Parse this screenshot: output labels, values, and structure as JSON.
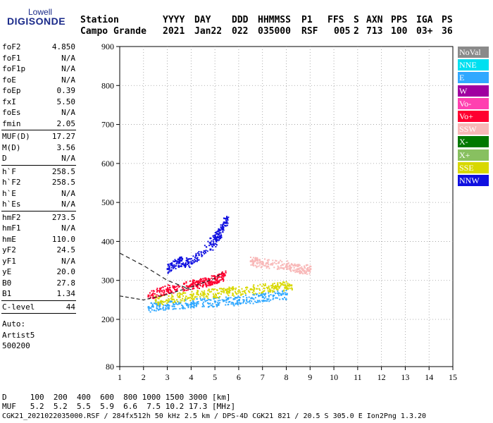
{
  "logo": {
    "line1": "Lowell",
    "line2": "DIGISONDE"
  },
  "header": {
    "labels": [
      "Station",
      "YYYY",
      "DAY",
      "DDD",
      "HHMMSS",
      "P1",
      "FFS",
      "S",
      "AXN",
      "PPS",
      "IGA",
      "PS"
    ],
    "values": [
      "Campo Grande",
      "2021",
      "Jan22",
      "022",
      "035000",
      "RSF",
      "005",
      "2",
      "713",
      "100",
      "03+",
      "36"
    ]
  },
  "params": {
    "group1": [
      {
        "k": "foF2",
        "v": "4.850"
      },
      {
        "k": "foF1",
        "v": "N/A"
      },
      {
        "k": "foF1p",
        "v": "N/A"
      },
      {
        "k": "foE",
        "v": "N/A"
      },
      {
        "k": "foEp",
        "v": "0.39"
      },
      {
        "k": "fxI",
        "v": "5.50"
      },
      {
        "k": "foEs",
        "v": "N/A"
      },
      {
        "k": "fmin",
        "v": "2.05"
      }
    ],
    "group2": [
      {
        "k": "MUF(D)",
        "v": "17.27"
      },
      {
        "k": "M(D)",
        "v": "3.56"
      },
      {
        "k": "D",
        "v": "N/A"
      }
    ],
    "group3": [
      {
        "k": "h`F",
        "v": "258.5"
      },
      {
        "k": "h`F2",
        "v": "258.5"
      },
      {
        "k": "h`E",
        "v": "N/A"
      },
      {
        "k": "h`Es",
        "v": "N/A"
      }
    ],
    "group4": [
      {
        "k": "hmF2",
        "v": "273.5"
      },
      {
        "k": "hmF1",
        "v": "N/A"
      },
      {
        "k": "hmE",
        "v": "110.0"
      },
      {
        "k": "yF2",
        "v": "24.5"
      },
      {
        "k": "yF1",
        "v": "N/A"
      },
      {
        "k": "yE",
        "v": "20.0"
      },
      {
        "k": "B0",
        "v": "27.8"
      },
      {
        "k": "B1",
        "v": "1.34"
      }
    ],
    "group5": [
      {
        "k": "C-level",
        "v": "44"
      }
    ],
    "auto": [
      "Auto:",
      "Artist5",
      "500200"
    ]
  },
  "footer": {
    "d_line": "D     100  200  400  600  800 1000 1500 3000 [km]",
    "muf_line": "MUF   5.2  5.2  5.5  5.9  6.6  7.5 10.2 17.3 [MHz]",
    "info_line": "CGK21_2021022035000.RSF / 284fx512h 50 kHz 2.5 km / DPS-4D CGK21 821 / 20.5 S 305.0 E Ion2Png 1.3.20"
  },
  "legend": [
    {
      "label": "NoVal",
      "color": "#8a8a8a"
    },
    {
      "label": "NNE",
      "color": "#00e0f0"
    },
    {
      "label": "E",
      "color": "#30a8ff"
    },
    {
      "label": "W",
      "color": "#a000a0"
    },
    {
      "label": "Vo-",
      "color": "#ff40b0"
    },
    {
      "label": "Vo+",
      "color": "#ff0030"
    },
    {
      "label": "SSW",
      "color": "#f8b8b8"
    },
    {
      "label": "X-",
      "color": "#007800"
    },
    {
      "label": "X+",
      "color": "#88c060"
    },
    {
      "label": "SSE",
      "color": "#d8d800"
    },
    {
      "label": "NNW",
      "color": "#1010e0"
    }
  ],
  "chart_data": {
    "type": "scatter",
    "xlim": [
      1,
      15
    ],
    "ylim": [
      80,
      900
    ],
    "xticks": [
      1,
      2,
      3,
      4,
      5,
      6,
      7,
      8,
      9,
      10,
      11,
      12,
      13,
      14,
      15
    ],
    "yticks": [
      80,
      200,
      300,
      400,
      500,
      600,
      700,
      800,
      900
    ],
    "grid": true,
    "legend_placement": "right",
    "series": [
      {
        "name": "E",
        "color": "#30a8ff",
        "points": [
          [
            2.2,
            232
          ],
          [
            3,
            238
          ],
          [
            4,
            243
          ],
          [
            5,
            246
          ],
          [
            6,
            250
          ],
          [
            7,
            258
          ],
          [
            8,
            265
          ]
        ]
      },
      {
        "name": "SSE",
        "color": "#d8d800",
        "points": [
          [
            2.5,
            250
          ],
          [
            3.5,
            258
          ],
          [
            4.5,
            266
          ],
          [
            5.5,
            272
          ],
          [
            6.5,
            278
          ],
          [
            7.5,
            284
          ],
          [
            8.2,
            288
          ]
        ]
      },
      {
        "name": "Vo+",
        "color": "#ff0030",
        "points": [
          [
            2.2,
            262
          ],
          [
            3,
            278
          ],
          [
            4,
            290
          ],
          [
            4.5,
            296
          ],
          [
            5,
            304
          ],
          [
            5.4,
            314
          ]
        ]
      },
      {
        "name": "NNW",
        "color": "#1010e0",
        "points": [
          [
            3,
            330
          ],
          [
            3.5,
            350
          ],
          [
            4,
            345
          ],
          [
            5,
            410
          ],
          [
            5.5,
            460
          ],
          [
            4.8,
            380
          ]
        ]
      },
      {
        "name": "SSW",
        "color": "#f8b8b8",
        "points": [
          [
            6.5,
            350
          ],
          [
            7,
            345
          ],
          [
            8,
            340
          ],
          [
            8.5,
            330
          ],
          [
            9,
            330
          ]
        ]
      }
    ],
    "profile_lines": [
      {
        "points": [
          [
            1,
            260
          ],
          [
            2,
            250
          ],
          [
            3,
            264
          ],
          [
            4,
            283
          ],
          [
            5,
            305
          ],
          [
            5.3,
            320
          ]
        ]
      },
      {
        "points": [
          [
            1,
            370
          ],
          [
            2,
            338
          ],
          [
            3,
            300
          ],
          [
            4,
            276
          ]
        ]
      }
    ]
  }
}
